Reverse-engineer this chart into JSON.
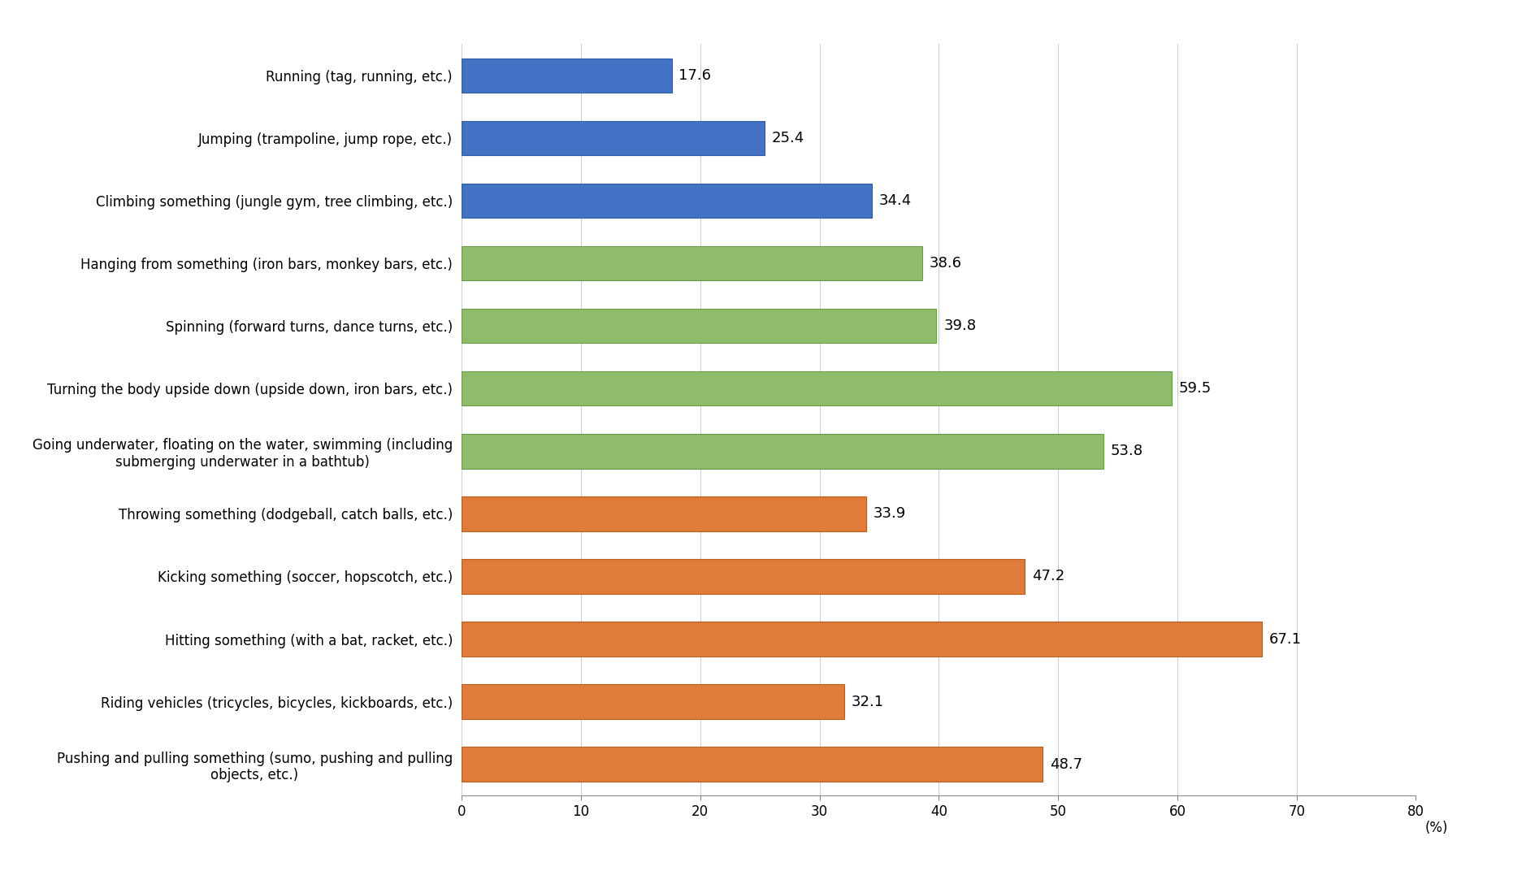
{
  "categories": [
    "Running (tag, running, etc.)",
    "Jumping (trampoline, jump rope, etc.)",
    "Climbing something (jungle gym, tree climbing, etc.)",
    "Hanging from something (iron bars, monkey bars, etc.)",
    "Spinning (forward turns, dance turns, etc.)",
    "Turning the body upside down (upside down, iron bars, etc.)",
    "Going underwater, floating on the water, swimming (including\nsubmerging underwater in a bathtub)",
    "Throwing something (dodgeball, catch balls, etc.)",
    "Kicking something (soccer, hopscotch, etc.)",
    "Hitting something (with a bat, racket, etc.)",
    "Riding vehicles (tricycles, bicycles, kickboards, etc.)",
    "Pushing and pulling something (sumo, pushing and pulling\nobjects, etc.)"
  ],
  "values": [
    17.6,
    25.4,
    34.4,
    38.6,
    39.8,
    59.5,
    53.8,
    33.9,
    47.2,
    67.1,
    32.1,
    48.7
  ],
  "colors": [
    "#4472C4",
    "#4472C4",
    "#4472C4",
    "#8FBC6A",
    "#8FBC6A",
    "#8FBC6A",
    "#8FBC6A",
    "#E07B39",
    "#E07B39",
    "#E07B39",
    "#E07B39",
    "#E07B39"
  ],
  "edge_colors": [
    "#2E5FA3",
    "#2E5FA3",
    "#2E5FA3",
    "#6A9A4A",
    "#6A9A4A",
    "#6A9A4A",
    "#6A9A4A",
    "#B85E1E",
    "#B85E1E",
    "#B85E1E",
    "#B85E1E",
    "#B85E1E"
  ],
  "xlim": [
    0,
    80
  ],
  "xticks": [
    0,
    10,
    20,
    30,
    40,
    50,
    60,
    70,
    80
  ],
  "xlabel_text": "(%)",
  "bar_height": 0.55,
  "label_fontsize": 12,
  "tick_fontsize": 12,
  "value_fontsize": 13,
  "background_color": "#ffffff",
  "figsize": [
    18.94,
    10.88
  ],
  "dpi": 100
}
